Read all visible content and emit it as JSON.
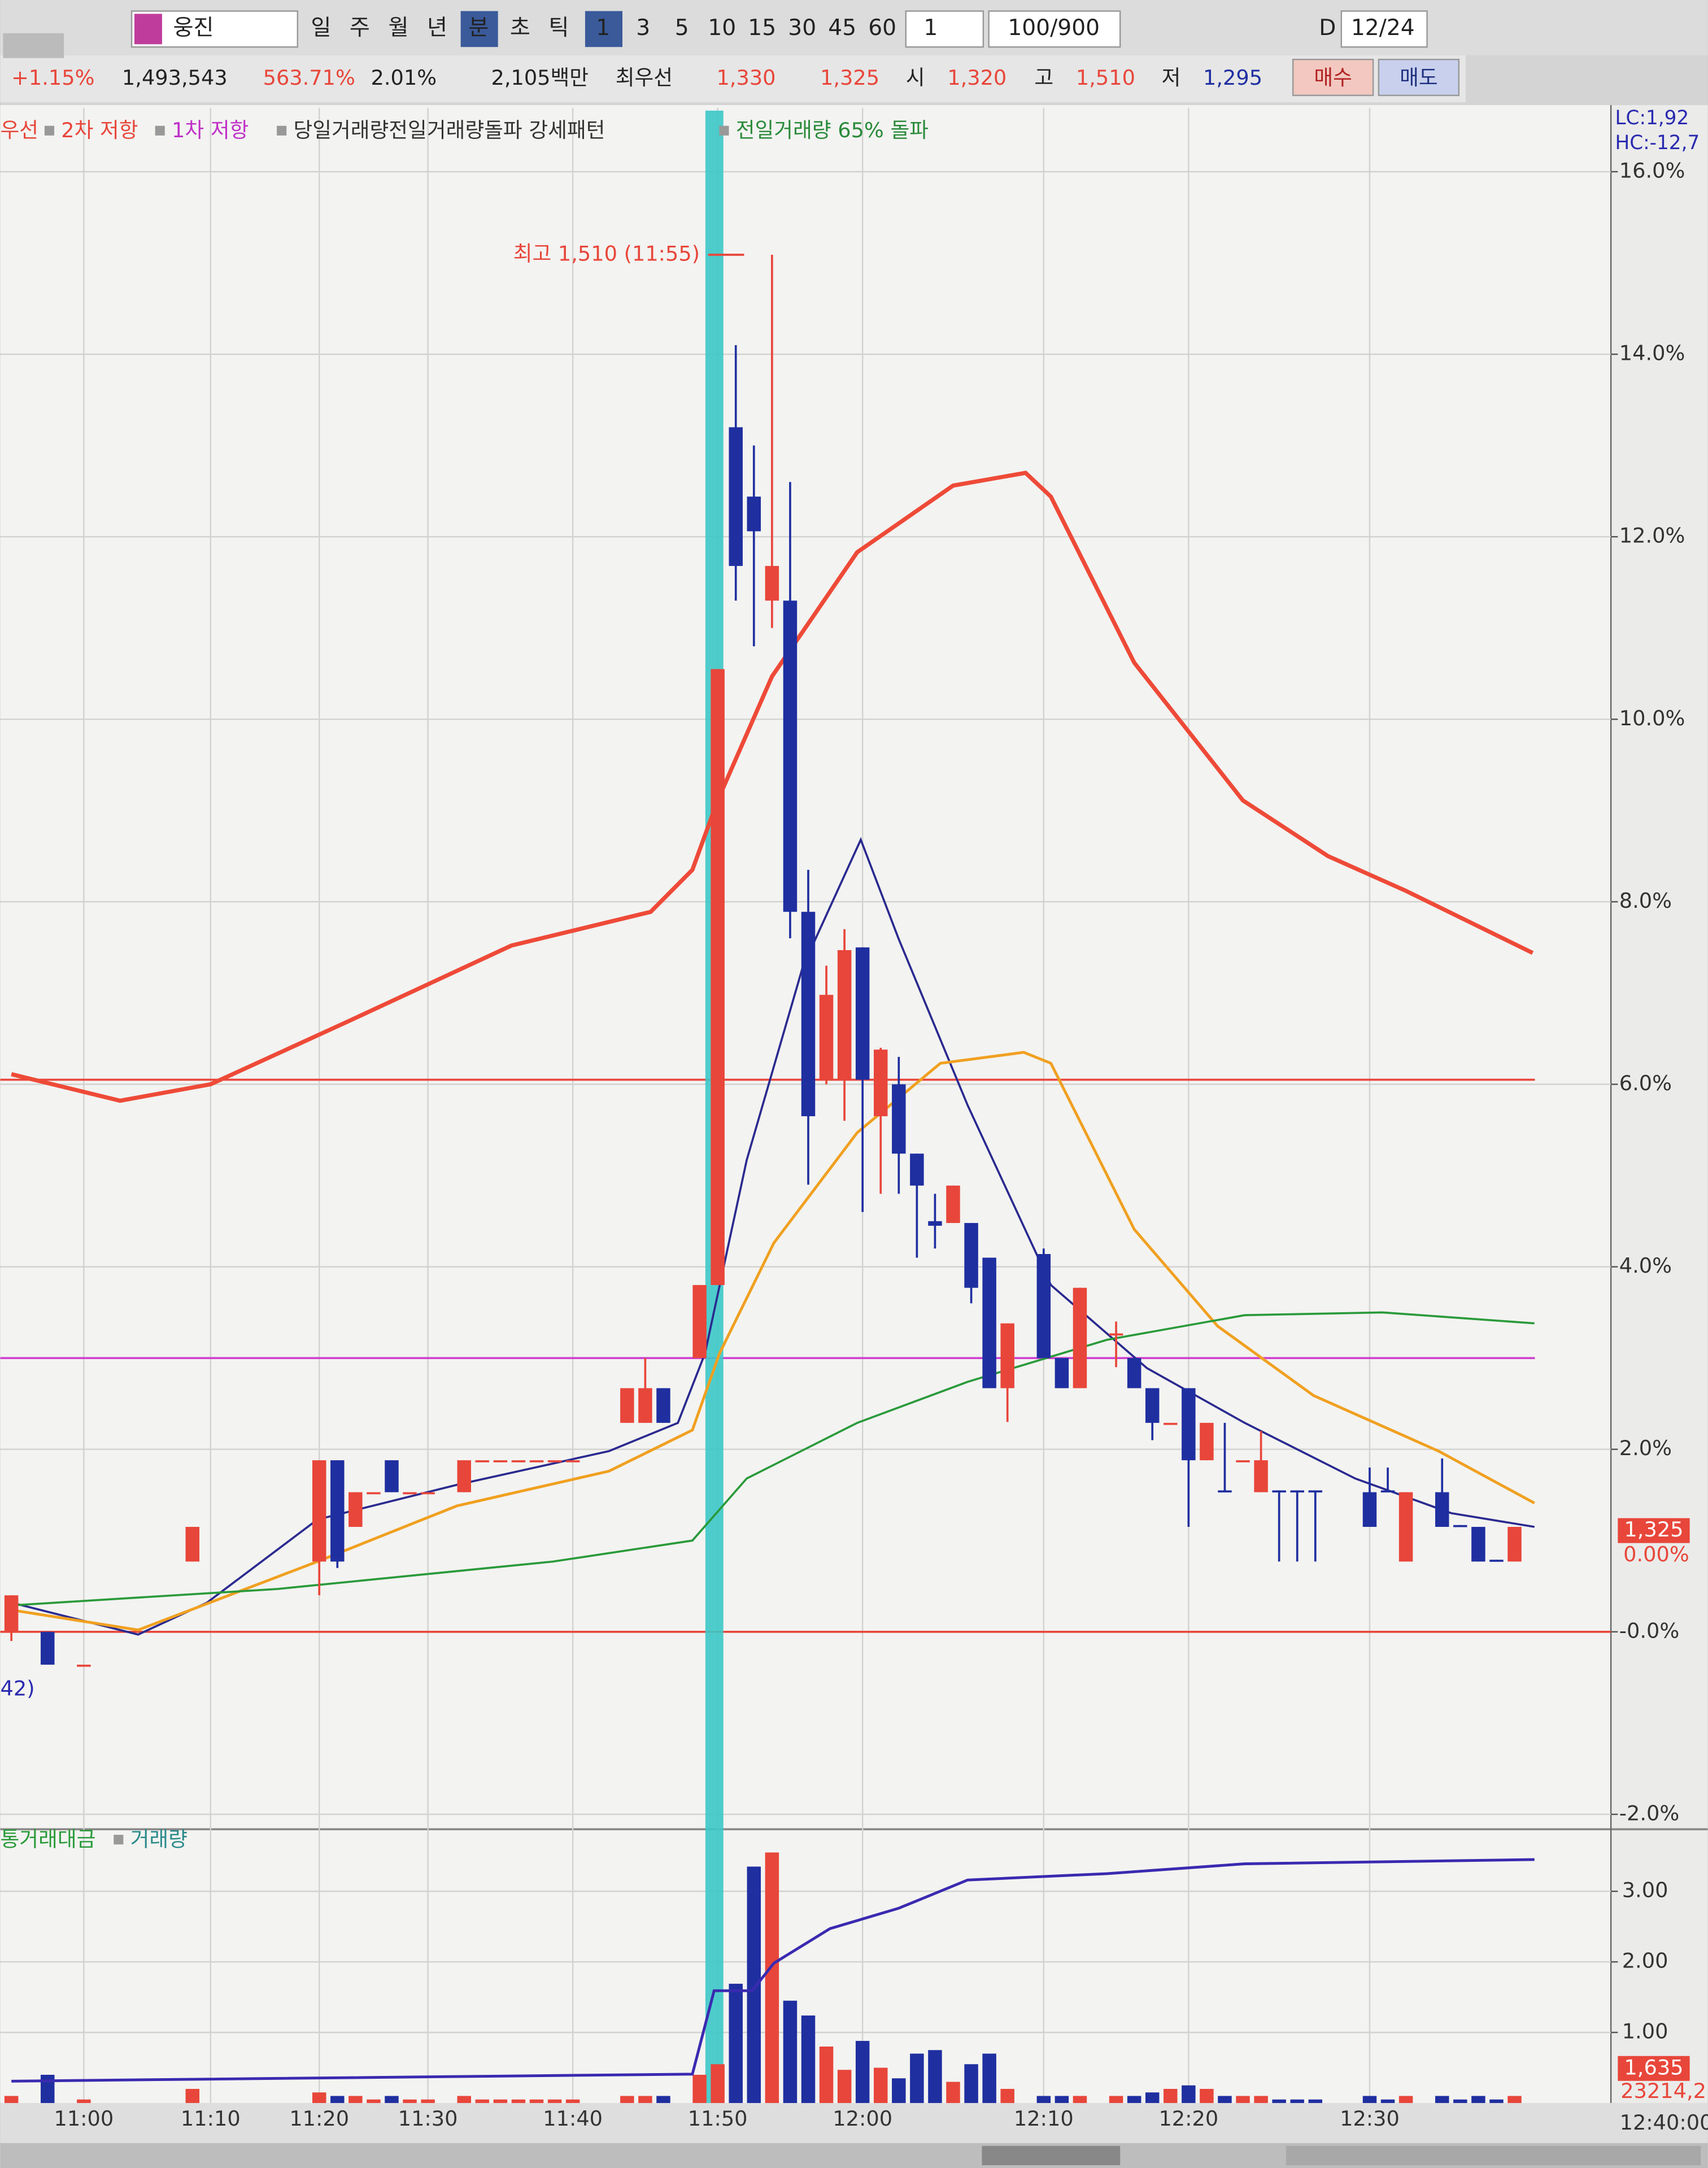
{
  "toolbar": {
    "name": "웅진",
    "periods": [
      "일",
      "주",
      "월",
      "년",
      "분",
      "초",
      "틱"
    ],
    "intervals": [
      "1",
      "3",
      "5",
      "10",
      "15",
      "30",
      "45",
      "60"
    ],
    "count": "1",
    "range": "100/900",
    "d": "D",
    "date": "12/24"
  },
  "quote": {
    "change": "+1.15%",
    "volume": "1,493,543",
    "vol_ratio": "563.71%",
    "turnover": "2.01%",
    "amount": "2,105백만",
    "best_label": "최우선",
    "ask": "1,330",
    "bid": "1,325",
    "open_label": "시",
    "open": "1,320",
    "high_label": "고",
    "high": "1,510",
    "low_label": "저",
    "low": "1,295",
    "buy": "매수",
    "sell": "매도"
  },
  "chart_data": {
    "type": "candlestick",
    "legend": [
      {
        "name": "우선",
        "color": "#e8463a"
      },
      {
        "name": "2차 저항",
        "color": "#e8463a"
      },
      {
        "name": "1차 저항",
        "color": "#c030c8"
      },
      {
        "name": "당일거래량전일거래량돌파 강세패턴",
        "color": "#333333"
      },
      {
        "name": "전일거래량 65% 돌파",
        "color": "#2a8a3a"
      }
    ],
    "corner_labels": [
      "LC:1,92",
      "HC:-12,7"
    ],
    "annotation": "최고 1,510 (11:55)",
    "left_label": "42)",
    "up_color": "#e8463a",
    "down_color": "#1f2fa0",
    "categories": [
      null,
      null,
      null,
      null,
      "11:00",
      null,
      null,
      null,
      null,
      null,
      null,
      "11:10",
      null,
      null,
      null,
      null,
      null,
      "11:20",
      null,
      null,
      null,
      null,
      null,
      "11:30",
      null,
      null,
      null,
      null,
      null,
      null,
      null,
      "11:40",
      null,
      null,
      null,
      null,
      null,
      null,
      null,
      "11:50",
      null,
      null,
      null,
      null,
      null,
      null,
      null,
      "12:00",
      null,
      null,
      null,
      null,
      null,
      null,
      null,
      null,
      null,
      "12:10",
      null,
      null,
      null,
      null,
      null,
      null,
      null,
      "12:20",
      null,
      null,
      null,
      null,
      null,
      null,
      null,
      null,
      null,
      "12:30",
      null,
      null,
      null,
      null,
      null,
      null,
      null,
      null,
      null,
      null,
      null,
      null
    ],
    "x_end_label": "12:40:00",
    "ohlc": [
      [
        0,
        0.4,
        -0.1,
        0.4
      ],
      null,
      [
        0,
        0,
        -0.36,
        -0.36
      ],
      null,
      [
        -0.36,
        -0.36,
        -0.36,
        -0.36
      ],
      null,
      null,
      null,
      null,
      null,
      [
        0.77,
        1.15,
        0.77,
        1.15
      ],
      null,
      null,
      null,
      null,
      null,
      null,
      [
        0.77,
        1.88,
        0.4,
        1.88
      ],
      [
        1.88,
        1.88,
        0.7,
        0.77
      ],
      [
        1.15,
        1.53,
        1.15,
        1.53
      ],
      [
        1.53,
        1.53,
        1.53,
        1.53
      ],
      [
        1.88,
        1.88,
        1.53,
        1.53
      ],
      [
        1.53,
        1.53,
        1.53,
        1.53
      ],
      [
        1.53,
        1.53,
        1.53,
        1.53
      ],
      null,
      [
        1.53,
        1.88,
        1.53,
        1.88
      ],
      [
        1.88,
        1.88,
        1.88,
        1.88
      ],
      [
        1.88,
        1.88,
        1.88,
        1.88
      ],
      [
        1.88,
        1.88,
        1.88,
        1.88
      ],
      [
        1.88,
        1.88,
        1.88,
        1.88
      ],
      [
        1.88,
        1.88,
        1.88,
        1.88
      ],
      [
        1.88,
        1.88,
        1.88,
        1.88
      ],
      null,
      null,
      [
        2.29,
        2.67,
        2.29,
        2.67
      ],
      [
        2.29,
        3.0,
        2.29,
        2.67
      ],
      [
        2.67,
        2.67,
        2.29,
        2.29
      ],
      null,
      [
        3.0,
        3.8,
        3.0,
        3.8
      ],
      [
        3.8,
        10.55,
        3.8,
        10.55
      ],
      [
        13.2,
        14.1,
        11.3,
        11.68
      ],
      [
        12.44,
        13.0,
        10.8,
        12.06
      ],
      [
        11.3,
        15.09,
        11.0,
        11.68
      ],
      [
        11.3,
        12.6,
        7.6,
        7.89
      ],
      [
        7.89,
        8.35,
        4.9,
        5.65
      ],
      [
        6.05,
        7.3,
        6.0,
        6.98
      ],
      [
        6.05,
        7.7,
        5.6,
        7.47
      ],
      [
        7.5,
        7.5,
        4.6,
        6.05
      ],
      [
        5.65,
        6.4,
        4.8,
        6.38
      ],
      [
        6.0,
        6.3,
        4.8,
        5.24
      ],
      [
        5.24,
        5.24,
        4.1,
        4.89
      ],
      [
        4.5,
        4.8,
        4.2,
        4.45
      ],
      [
        4.48,
        4.89,
        4.48,
        4.89
      ],
      [
        4.48,
        4.48,
        3.6,
        3.77
      ],
      [
        4.1,
        4.1,
        2.67,
        2.67
      ],
      [
        2.67,
        3.38,
        2.3,
        3.38
      ],
      null,
      [
        4.14,
        4.2,
        3.0,
        3.0
      ],
      [
        3.0,
        3.0,
        2.67,
        2.67
      ],
      [
        2.67,
        3.77,
        2.67,
        3.77
      ],
      null,
      [
        3.27,
        3.4,
        2.9,
        3.27
      ],
      [
        3.0,
        3.0,
        2.67,
        2.67
      ],
      [
        2.67,
        2.67,
        2.1,
        2.29
      ],
      [
        2.29,
        2.29,
        2.29,
        2.29
      ],
      [
        2.67,
        2.67,
        1.15,
        1.88
      ],
      [
        1.88,
        2.29,
        1.88,
        2.29
      ],
      [
        1.55,
        2.29,
        1.53,
        1.53
      ],
      [
        1.88,
        1.88,
        1.88,
        1.88
      ],
      [
        1.53,
        2.2,
        1.53,
        1.88
      ],
      [
        1.55,
        1.55,
        0.77,
        1.53
      ],
      [
        1.55,
        1.55,
        0.77,
        1.53
      ],
      [
        1.55,
        1.55,
        0.77,
        1.53
      ],
      null,
      null,
      [
        1.53,
        1.8,
        1.15,
        1.15
      ],
      [
        1.55,
        1.8,
        1.53,
        1.53
      ],
      [
        0.77,
        1.53,
        0.77,
        1.53
      ],
      null,
      [
        1.53,
        1.9,
        1.15,
        1.15
      ],
      [
        1.17,
        1.17,
        1.15,
        1.15
      ],
      [
        1.15,
        1.15,
        0.77,
        0.77
      ],
      [
        0.79,
        0.79,
        0.77,
        0.77
      ],
      [
        0.77,
        1.15,
        0.77,
        1.15
      ],
      null,
      null,
      null,
      null
    ],
    "lines": [
      {
        "color": "#ee4a38",
        "width": 3,
        "x": [
          0,
          6,
          11,
          18.5,
          27.6,
          35.3,
          37.6,
          39,
          42,
          46.7,
          52,
          56,
          57.4,
          62,
          68,
          72.7,
          77,
          84
        ],
        "values": [
          6.11,
          5.82,
          6.0,
          6.68,
          7.52,
          7.89,
          8.35,
          9.11,
          10.47,
          11.83,
          12.56,
          12.7,
          12.44,
          10.62,
          9.11,
          8.5,
          8.12,
          7.44
        ]
      },
      {
        "color": "#2a2a90",
        "width": 1.5,
        "x": [
          0,
          7,
          10.8,
          16.9,
          24.6,
          33,
          36.8,
          38.3,
          40.6,
          43.7,
          46.9,
          49,
          52.8,
          57.4,
          62.7,
          68.1,
          74.2,
          79.5,
          84.1
        ],
        "values": [
          0.32,
          -0.03,
          0.32,
          1.23,
          1.61,
          1.98,
          2.29,
          3.05,
          5.17,
          7.29,
          8.68,
          7.59,
          5.77,
          3.8,
          2.89,
          2.29,
          1.68,
          1.3,
          1.15
        ]
      },
      {
        "color": "#f0a020",
        "width": 2,
        "x": [
          0,
          7,
          16.9,
          24.6,
          33,
          37.6,
          39.1,
          42.1,
          46.7,
          51.3,
          55.9,
          57.4,
          62,
          66.6,
          71.9,
          78.8,
          84.1
        ],
        "values": [
          0.24,
          0.02,
          0.77,
          1.38,
          1.76,
          2.21,
          3.05,
          4.26,
          5.47,
          6.23,
          6.35,
          6.23,
          4.41,
          3.35,
          2.59,
          1.98,
          1.41
        ]
      },
      {
        "color": "#2a9a3a",
        "width": 1.5,
        "x": [
          0,
          14.7,
          29.9,
          37.6,
          40.6,
          46.7,
          52.8,
          60.5,
          68.1,
          75.7,
          84.1
        ],
        "values": [
          0.29,
          0.47,
          0.77,
          1.0,
          1.68,
          2.29,
          2.74,
          3.2,
          3.47,
          3.5,
          3.38
        ]
      }
    ],
    "hlines": [
      {
        "value": 6.05,
        "color": "#e8463a"
      },
      {
        "value": 3.0,
        "color": "#d040d0"
      },
      {
        "value": 0,
        "color": "#e8463a"
      }
    ],
    "ylim": [
      -2.118,
      16.7
    ],
    "yticks": [
      {
        "value": 16,
        "label": "16.0%"
      },
      {
        "value": 14,
        "label": "14.0%"
      },
      {
        "value": 12,
        "label": "12.0%"
      },
      {
        "value": 10,
        "label": "10.0%"
      },
      {
        "value": 8,
        "label": "8.0%"
      },
      {
        "value": 6,
        "label": "6.0%"
      },
      {
        "value": 4,
        "label": "4.0%"
      },
      {
        "value": 2,
        "label": "2.0%"
      },
      {
        "value": 0,
        "label": "-0.0%"
      },
      {
        "value": -2,
        "label": "-2.0%"
      }
    ],
    "grid": true,
    "price_labels": [
      "1,325",
      "0.00%"
    ],
    "volume": {
      "legend": [
        "통거래대금",
        "거래량"
      ],
      "legend_colors": [
        "#2a9a3a",
        "#2a8a8a"
      ],
      "values": [
        0.1,
        null,
        0.4,
        null,
        0.05,
        null,
        null,
        null,
        null,
        null,
        0.2,
        null,
        null,
        null,
        null,
        null,
        null,
        0.15,
        0.1,
        0.1,
        0.05,
        0.1,
        0.05,
        0.05,
        null,
        0.1,
        0.05,
        0.05,
        0.05,
        0.05,
        0.05,
        0.05,
        null,
        null,
        0.1,
        0.1,
        0.1,
        null,
        0.4,
        0.55,
        1.69,
        3.35,
        3.55,
        1.45,
        1.24,
        0.8,
        0.47,
        0.88,
        0.5,
        0.35,
        0.7,
        0.75,
        0.3,
        0.55,
        0.7,
        0.2,
        null,
        0.1,
        0.1,
        0.1,
        null,
        0.1,
        0.1,
        0.15,
        0.2,
        0.25,
        0.2,
        0.1,
        0.1,
        0.1,
        0.05,
        0.05,
        0.05,
        null,
        null,
        0.1,
        0.05,
        0.1,
        null,
        0.1,
        0.05,
        0.1,
        0.05,
        0.1,
        null,
        null,
        null,
        null
      ],
      "line": {
        "color": "#3a2ab0",
        "x": [
          0,
          37.6,
          38.8,
          40.9,
          42.1,
          45.2,
          49,
          52.8,
          60.5,
          68.1,
          84.1
        ],
        "values": [
          0.31,
          0.41,
          1.59,
          1.59,
          1.98,
          2.47,
          2.76,
          3.16,
          3.25,
          3.39,
          3.45
        ]
      },
      "ylim": [
        0,
        3.84
      ],
      "yticks": [
        {
          "value": 1,
          "label": "1.00"
        },
        {
          "value": 2,
          "label": "2.00"
        },
        {
          "value": 3,
          "label": "3.00"
        }
      ],
      "labels": [
        "1,635",
        "23214,2"
      ]
    }
  }
}
